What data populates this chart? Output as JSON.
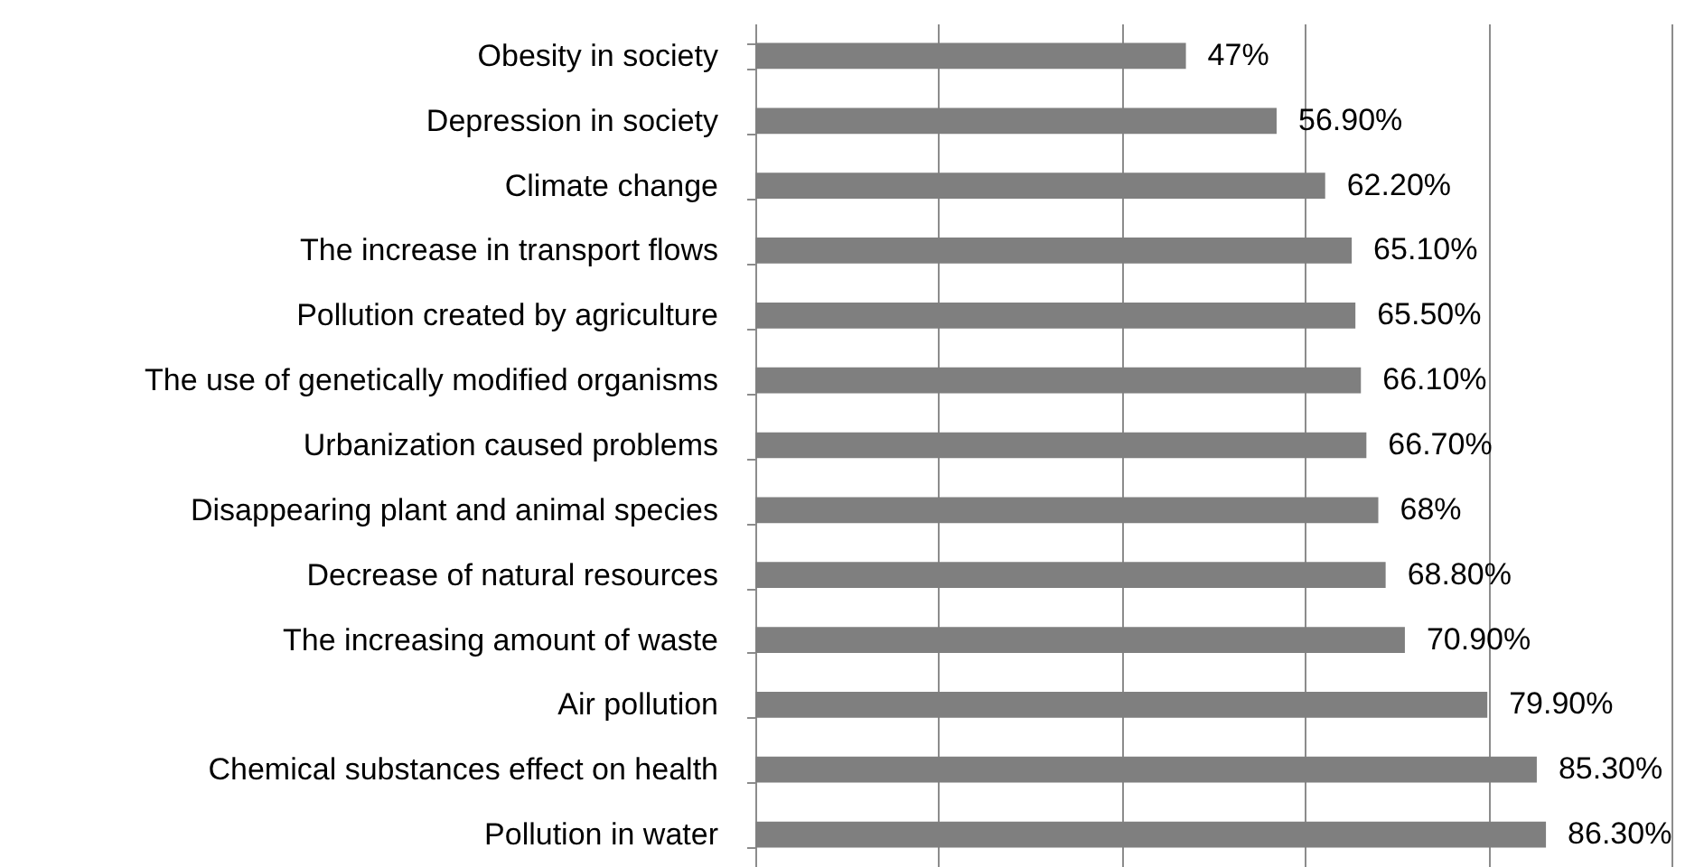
{
  "chart_data": {
    "type": "bar",
    "orientation": "horizontal",
    "categories": [
      "Obesity in society",
      "Depression in society",
      "Climate change",
      "The increase in transport flows",
      "Pollution created by agriculture",
      "The use of genetically modified organisms",
      "Urbanization caused problems",
      "Disappearing plant and animal species",
      "Decrease of natural resources",
      "The increasing amount of waste",
      "Air pollution",
      "Chemical substances effect on health",
      "Pollution in water"
    ],
    "values": [
      47,
      56.9,
      62.2,
      65.1,
      65.5,
      66.1,
      66.7,
      68,
      68.8,
      70.9,
      79.9,
      85.3,
      86.3
    ],
    "value_labels": [
      "47%",
      "56.90%",
      "62.20%",
      "65.10%",
      "65.50%",
      "66.10%",
      "66.70%",
      "68%",
      "68.80%",
      "70.90%",
      "79.90%",
      "85.30%",
      "86.30%"
    ],
    "color": "#7f7f7f",
    "xlim": [
      0,
      100
    ],
    "xticks": [
      {
        "value": 0,
        "label": null
      },
      {
        "value": 20,
        "label": null
      },
      {
        "value": 40,
        "label": null
      },
      {
        "value": 60,
        "label": null
      },
      {
        "value": 80,
        "label": null
      },
      {
        "value": 100,
        "label": null
      }
    ],
    "grid": "x",
    "tick_labels": "y"
  }
}
